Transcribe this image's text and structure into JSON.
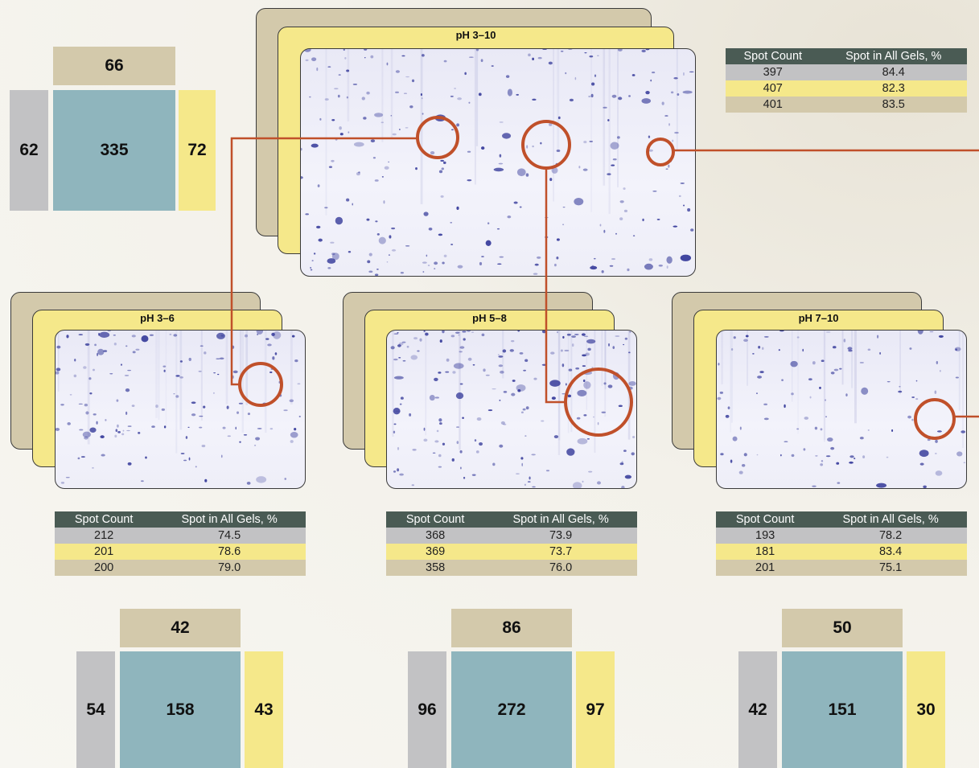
{
  "top": {
    "ph_label": "pH 3–10",
    "table": {
      "headers": [
        "Spot Count",
        "Spot in All Gels, %"
      ],
      "rows": [
        [
          "397",
          "84.4"
        ],
        [
          "407",
          "82.3"
        ],
        [
          "401",
          "83.5"
        ]
      ]
    },
    "counts": {
      "top": "66",
      "left": "62",
      "center": "335",
      "right": "72"
    }
  },
  "gels": [
    {
      "ph_label": "pH 3–6",
      "table": {
        "headers": [
          "Spot Count",
          "Spot in All Gels, %"
        ],
        "rows": [
          [
            "212",
            "74.5"
          ],
          [
            "201",
            "78.6"
          ],
          [
            "200",
            "79.0"
          ]
        ]
      },
      "counts": {
        "top": "42",
        "left": "54",
        "center": "158",
        "right": "43"
      }
    },
    {
      "ph_label": "pH 5–8",
      "table": {
        "headers": [
          "Spot Count",
          "Spot in All Gels, %"
        ],
        "rows": [
          [
            "368",
            "73.9"
          ],
          [
            "369",
            "73.7"
          ],
          [
            "358",
            "76.0"
          ]
        ]
      },
      "counts": {
        "top": "86",
        "left": "96",
        "center": "272",
        "right": "97"
      }
    },
    {
      "ph_label": "pH 7–10",
      "table": {
        "headers": [
          "Spot Count",
          "Spot in All Gels, %"
        ],
        "rows": [
          [
            "193",
            "78.2"
          ],
          [
            "181",
            "83.4"
          ],
          [
            "201",
            "75.1"
          ]
        ]
      },
      "counts": {
        "top": "50",
        "left": "42",
        "center": "151",
        "right": "30"
      }
    }
  ],
  "colors": {
    "gel_tan": "#d3c9ab",
    "gel_yellow": "#f5e88a",
    "gel_gray": "#c2c2c4",
    "overlap_teal": "#8fb5bd",
    "table_header": "#4a5b54",
    "highlight": "#c0502a",
    "spot": "#2e3396"
  }
}
